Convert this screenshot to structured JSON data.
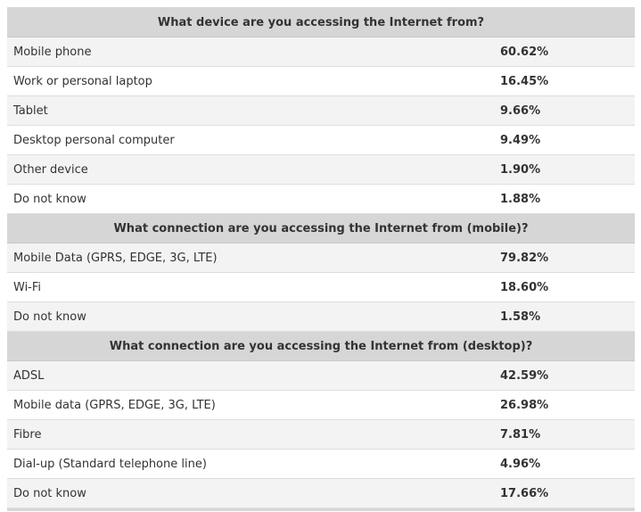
{
  "sections": [
    {
      "title": "What device are you accessing the Internet from?",
      "rows": [
        {
          "label": "Mobile phone",
          "value": "60.62%"
        },
        {
          "label": "Work or personal laptop",
          "value": "16.45%"
        },
        {
          "label": "Tablet",
          "value": "9.66%"
        },
        {
          "label": "Desktop personal computer",
          "value": "9.49%"
        },
        {
          "label": "Other device",
          "value": "1.90%"
        },
        {
          "label": "Do not know",
          "value": "1.88%"
        }
      ]
    },
    {
      "title": "What connection are you accessing the Internet from (mobile)?",
      "rows": [
        {
          "label": "Mobile Data (GPRS, EDGE, 3G, LTE)",
          "value": "79.82%"
        },
        {
          "label": "Wi-Fi",
          "value": "18.60%"
        },
        {
          "label": "Do not know",
          "value": "1.58%"
        }
      ]
    },
    {
      "title": "What connection are you accessing the Internet from (desktop)?",
      "rows": [
        {
          "label": "ADSL",
          "value": "42.59%"
        },
        {
          "label": "Mobile data (GPRS, EDGE, 3G, LTE)",
          "value": "26.98%"
        },
        {
          "label": "Fibre",
          "value": "7.81%"
        },
        {
          "label": "Dial-up (Standard telephone line)",
          "value": "4.96%"
        },
        {
          "label": "Do not know",
          "value": "17.66%"
        }
      ]
    }
  ]
}
